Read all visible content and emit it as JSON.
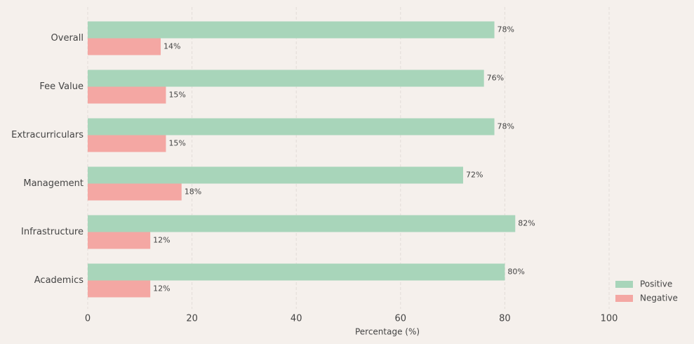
{
  "chart_data": {
    "type": "barh",
    "categories": [
      "Overall",
      "Fee Value",
      "Extracurriculars",
      "Management",
      "Infrastructure",
      "Academics"
    ],
    "series": [
      {
        "name": "Positive",
        "color": "#a8d5ba",
        "values": [
          78,
          76,
          78,
          72,
          82,
          80
        ],
        "value_labels": [
          "78%",
          "76%",
          "78%",
          "72%",
          "82%",
          "80%"
        ]
      },
      {
        "name": "Negative",
        "color": "#f4a7a3",
        "values": [
          14,
          15,
          15,
          18,
          12,
          12
        ],
        "value_labels": [
          "14%",
          "15%",
          "15%",
          "18%",
          "12%",
          "12%"
        ]
      }
    ],
    "xlabel": "Percentage (%)",
    "xlim": [
      0,
      115
    ],
    "xticks": [
      0,
      20,
      40,
      60,
      80,
      100
    ],
    "grid": true,
    "legend": "lower right"
  }
}
